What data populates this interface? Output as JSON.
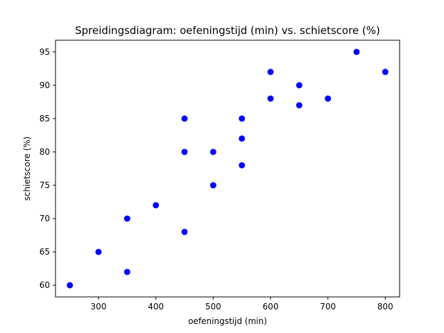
{
  "chart_data": {
    "type": "scatter",
    "title": "Spreidingsdiagram: oefeningstijd (min) vs. schietscore (%)",
    "xlabel": "oefeningstijd (min)",
    "ylabel": "schietscore (%)",
    "xlim": [
      225,
      825
    ],
    "ylim": [
      58.25,
      96.75
    ],
    "xticks": [
      300,
      400,
      500,
      600,
      700,
      800
    ],
    "yticks": [
      60,
      65,
      70,
      75,
      80,
      85,
      90,
      95
    ],
    "grid": false,
    "marker_color": "#0000ff",
    "series": [
      {
        "points": [
          [
            250,
            60
          ],
          [
            300,
            65
          ],
          [
            350,
            62
          ],
          [
            350,
            70
          ],
          [
            400,
            72
          ],
          [
            450,
            68
          ],
          [
            450,
            80
          ],
          [
            450,
            85
          ],
          [
            500,
            75
          ],
          [
            500,
            80
          ],
          [
            550,
            78
          ],
          [
            550,
            82
          ],
          [
            550,
            85
          ],
          [
            600,
            88
          ],
          [
            600,
            92
          ],
          [
            650,
            87
          ],
          [
            650,
            90
          ],
          [
            700,
            88
          ],
          [
            750,
            95
          ],
          [
            800,
            92
          ]
        ]
      }
    ]
  }
}
